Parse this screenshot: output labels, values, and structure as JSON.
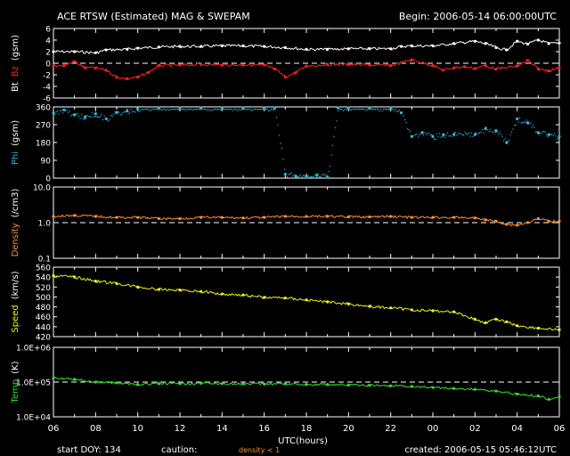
{
  "header": {
    "title": "ACE RTSW (Estimated) MAG & SWEPAM",
    "begin": "Begin: 2006-05-14 06:00:00UTC"
  },
  "footer": {
    "start_doy": "start DOY: 134",
    "caution": "caution:",
    "density_note": "density < 1",
    "created": "created: 2006-05-15 05:46:12UTC"
  },
  "colors": {
    "bt": "#ffffff",
    "bz": "#ff2020",
    "phi": "#30b8e0",
    "density": "#ff9030",
    "speed": "#f0f020",
    "temp": "#30e030",
    "axes": "#ffffff"
  },
  "chart_data": [
    {
      "type": "line",
      "panel": "mag",
      "ylabel_parts": [
        "Bt",
        "Bz",
        "(gsm)"
      ],
      "ylim": [
        -6,
        6
      ],
      "yticks": [
        "6",
        "4",
        "2",
        "0",
        "-2",
        "-4",
        "-6"
      ],
      "dashed_at": 0,
      "series": [
        {
          "name": "Bt",
          "x": [
            6.0,
            7.0,
            8.0,
            8.5,
            9.5,
            10.0,
            11.0,
            12.0,
            13.0,
            14.0,
            15.0,
            16.0,
            17.0,
            18.0,
            19.0,
            20.0,
            21.0,
            22.0,
            22.5,
            23.0,
            24.0,
            25.0,
            26.0,
            26.5,
            27.0,
            27.5,
            28.0,
            28.5,
            29.0,
            29.5,
            30.0
          ],
          "values": [
            2.0,
            2.0,
            1.8,
            2.3,
            2.4,
            2.6,
            2.8,
            2.9,
            2.9,
            3.0,
            3.0,
            2.9,
            2.7,
            2.4,
            2.4,
            2.5,
            2.5,
            2.5,
            2.9,
            3.0,
            3.0,
            3.4,
            3.8,
            3.4,
            2.7,
            2.3,
            3.8,
            3.3,
            4.0,
            3.4,
            3.5
          ]
        },
        {
          "name": "Bz",
          "x": [
            6.0,
            6.5,
            7.0,
            7.5,
            8.0,
            8.5,
            9.0,
            9.5,
            10.0,
            10.5,
            11.0,
            12.0,
            13.0,
            14.0,
            15.0,
            16.0,
            16.5,
            17.0,
            17.5,
            18.0,
            19.0,
            20.0,
            21.0,
            22.0,
            23.0,
            24.0,
            24.5,
            25.0,
            25.5,
            26.0,
            26.5,
            27.0,
            28.0,
            28.5,
            29.0,
            29.5,
            30.0
          ],
          "values": [
            -0.4,
            -0.4,
            0.3,
            -0.8,
            -0.8,
            -1.2,
            -2.4,
            -2.7,
            -2.4,
            -1.6,
            -0.4,
            -0.3,
            -0.2,
            -0.3,
            -0.3,
            -0.3,
            -1.0,
            -2.4,
            -1.6,
            -0.5,
            -0.2,
            -0.2,
            -0.3,
            -0.4,
            0.6,
            -0.4,
            -1.2,
            -0.8,
            -0.6,
            -0.9,
            -0.4,
            -1.0,
            -0.5,
            0.5,
            -1.0,
            -1.3,
            -0.8
          ]
        }
      ]
    },
    {
      "type": "scatter",
      "panel": "phi",
      "ylabel_parts": [
        "Phi",
        "(gsm)"
      ],
      "ylim": [
        0,
        360
      ],
      "yticks": [
        "360",
        "270",
        "180",
        "90",
        "0"
      ],
      "series": [
        {
          "name": "Phi",
          "x": [
            6.0,
            6.5,
            7.0,
            7.5,
            8.0,
            8.5,
            9.0,
            9.5,
            10.0,
            11.0,
            12.0,
            13.0,
            14.0,
            15.0,
            16.0,
            16.5,
            17.0,
            17.5,
            18.0,
            18.5,
            19.0,
            19.5,
            20.0,
            21.0,
            22.0,
            22.5,
            23.0,
            23.5,
            24.0,
            24.5,
            25.0,
            26.0,
            26.5,
            27.0,
            27.5,
            28.0,
            28.5,
            29.0,
            29.5,
            30.0
          ],
          "values": [
            330,
            345,
            320,
            310,
            325,
            300,
            330,
            340,
            350,
            355,
            355,
            355,
            355,
            355,
            355,
            355,
            20,
            10,
            5,
            15,
            5,
            355,
            355,
            355,
            355,
            330,
            210,
            230,
            210,
            220,
            220,
            220,
            250,
            240,
            180,
            300,
            280,
            230,
            220,
            210
          ]
        }
      ]
    },
    {
      "type": "line",
      "panel": "density",
      "ylabel_parts": [
        "Density",
        "(/cm3)"
      ],
      "ylim": [
        0.1,
        10
      ],
      "yscale": "log",
      "yticks": [
        "10.0",
        "1.0",
        "0.1"
      ],
      "dashed_at": 1.0,
      "series": [
        {
          "name": "Density",
          "x": [
            6.0,
            7.0,
            8.0,
            9.0,
            10.0,
            11.0,
            12.0,
            13.0,
            14.0,
            15.0,
            16.0,
            17.0,
            18.0,
            19.0,
            20.0,
            21.0,
            22.0,
            23.0,
            24.0,
            25.0,
            26.0,
            26.5,
            27.0,
            27.5,
            28.0,
            28.5,
            29.0,
            29.5,
            30.0
          ],
          "values": [
            1.5,
            1.6,
            1.5,
            1.4,
            1.4,
            1.3,
            1.3,
            1.4,
            1.4,
            1.35,
            1.4,
            1.5,
            1.5,
            1.5,
            1.45,
            1.45,
            1.5,
            1.4,
            1.4,
            1.4,
            1.35,
            1.2,
            1.1,
            0.9,
            0.85,
            1.0,
            1.3,
            1.1,
            1.1
          ]
        }
      ]
    },
    {
      "type": "line",
      "panel": "speed",
      "ylabel_parts": [
        "Speed",
        "(km/s)"
      ],
      "ylim": [
        420,
        560
      ],
      "yticks": [
        "560",
        "540",
        "520",
        "500",
        "480",
        "460",
        "440",
        "420"
      ],
      "series": [
        {
          "name": "Speed",
          "x": [
            6.0,
            7.0,
            8.0,
            9.0,
            10.0,
            11.0,
            12.0,
            13.0,
            14.0,
            15.0,
            16.0,
            17.0,
            18.0,
            19.0,
            20.0,
            21.0,
            22.0,
            23.0,
            24.0,
            25.0,
            26.0,
            26.5,
            27.0,
            27.5,
            28.0,
            29.0,
            30.0
          ],
          "values": [
            543,
            540,
            532,
            527,
            520,
            515,
            514,
            511,
            506,
            504,
            499,
            498,
            494,
            490,
            486,
            481,
            478,
            474,
            472,
            470,
            455,
            448,
            455,
            450,
            442,
            437,
            434
          ]
        }
      ]
    },
    {
      "type": "line",
      "panel": "temp",
      "ylabel_parts": [
        "Temp",
        "(K)"
      ],
      "ylim": [
        10000,
        1000000
      ],
      "yscale": "log",
      "yticks": [
        "1.0E+06",
        "1.0E+05",
        "1.0E+04"
      ],
      "dashed_at": 100000,
      "series": [
        {
          "name": "Temp",
          "x": [
            6.0,
            7.0,
            8.0,
            9.0,
            10.0,
            11.0,
            12.0,
            13.0,
            14.0,
            15.0,
            16.0,
            17.0,
            18.0,
            19.0,
            20.0,
            21.0,
            22.0,
            23.0,
            24.0,
            25.0,
            26.0,
            27.0,
            28.0,
            29.0,
            29.5,
            30.0
          ],
          "values": [
            130000,
            120000,
            100000,
            95000,
            85000,
            90000,
            90000,
            92000,
            90000,
            88000,
            88000,
            90000,
            85000,
            85000,
            82000,
            80000,
            78000,
            75000,
            70000,
            65000,
            62000,
            55000,
            45000,
            40000,
            32000,
            38000
          ]
        }
      ]
    }
  ],
  "x_axis": {
    "label": "UTC(hours)",
    "range": [
      6,
      30
    ],
    "tick_labels": [
      "06",
      "08",
      "10",
      "12",
      "14",
      "16",
      "18",
      "20",
      "22",
      "00",
      "02",
      "04",
      "06"
    ]
  }
}
